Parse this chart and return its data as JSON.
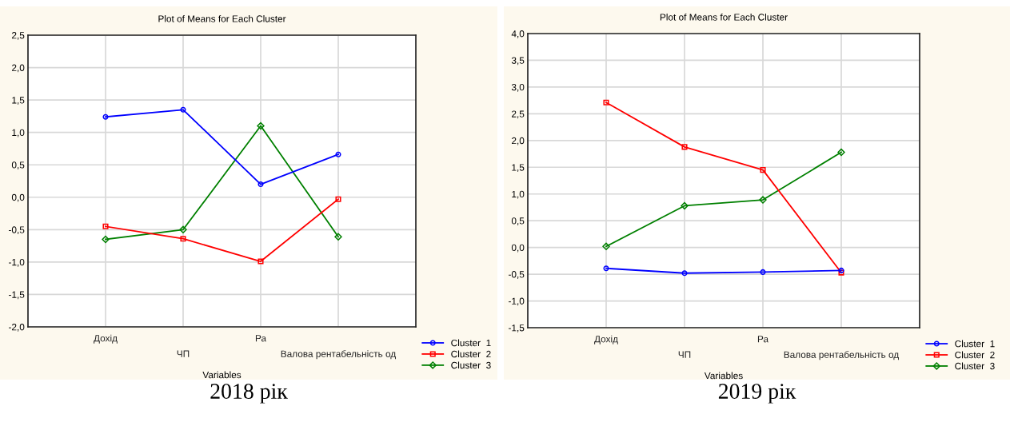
{
  "chart_data": [
    {
      "type": "line",
      "title": "Plot of Means for Each Cluster",
      "xlabel": "Variables",
      "categories": [
        "Дохід",
        "ЧП",
        "Ра",
        "Валова рентабельність од"
      ],
      "series": [
        {
          "name": "Cluster  1",
          "color": "#0000ff",
          "marker": "circle",
          "values": [
            1.24,
            1.35,
            0.2,
            0.66
          ]
        },
        {
          "name": "Cluster  2",
          "color": "#ff0000",
          "marker": "square",
          "values": [
            -0.45,
            -0.64,
            -0.99,
            -0.03
          ]
        },
        {
          "name": "Cluster  3",
          "color": "#008000",
          "marker": "diamond",
          "values": [
            -0.65,
            -0.5,
            1.1,
            -0.61
          ]
        }
      ],
      "ylim": [
        -2.0,
        2.5
      ],
      "yticks": [
        {
          "value": -2.0,
          "label": "-2,0"
        },
        {
          "value": -1.5,
          "label": "-1,5"
        },
        {
          "value": -1.0,
          "label": "-1,0"
        },
        {
          "value": -0.5,
          "label": "-0,5"
        },
        {
          "value": 0.0,
          "label": "0,0"
        },
        {
          "value": 0.5,
          "label": "0,5"
        },
        {
          "value": 1.0,
          "label": "1,0"
        },
        {
          "value": 1.5,
          "label": "1,5"
        },
        {
          "value": 2.0,
          "label": "2,0"
        },
        {
          "value": 2.5,
          "label": "2,5"
        }
      ],
      "grid": true,
      "legend": "bottom right",
      "line_style": "solid",
      "annotations": [
        "2018 рік"
      ]
    },
    {
      "type": "line",
      "title": "Plot of Means for Each Cluster",
      "xlabel": "Variables",
      "categories": [
        "Дохід",
        "ЧП",
        "Ра",
        "Валова рентабельність од"
      ],
      "series": [
        {
          "name": "Cluster  1",
          "color": "#0000ff",
          "marker": "circle",
          "values": [
            -0.39,
            -0.48,
            -0.46,
            -0.43
          ]
        },
        {
          "name": "Cluster  2",
          "color": "#ff0000",
          "marker": "square",
          "values": [
            2.71,
            1.88,
            1.45,
            -0.47
          ]
        },
        {
          "name": "Cluster  3",
          "color": "#008000",
          "marker": "diamond",
          "values": [
            0.02,
            0.78,
            0.89,
            1.78
          ]
        }
      ],
      "ylim": [
        -1.5,
        4.0
      ],
      "yticks": [
        {
          "value": -1.5,
          "label": "-1,5"
        },
        {
          "value": -1.0,
          "label": "-1,0"
        },
        {
          "value": -0.5,
          "label": "-0,5"
        },
        {
          "value": 0.0,
          "label": "0,0"
        },
        {
          "value": 0.5,
          "label": "0,5"
        },
        {
          "value": 1.0,
          "label": "1,0"
        },
        {
          "value": 1.5,
          "label": "1,5"
        },
        {
          "value": 2.0,
          "label": "2,0"
        },
        {
          "value": 2.5,
          "label": "2,5"
        },
        {
          "value": 3.0,
          "label": "3,0"
        },
        {
          "value": 3.5,
          "label": "3,5"
        },
        {
          "value": 4.0,
          "label": "4,0"
        }
      ],
      "grid": true,
      "legend": "bottom right",
      "line_style": "solid",
      "annotations": [
        "2019 рік"
      ]
    }
  ]
}
